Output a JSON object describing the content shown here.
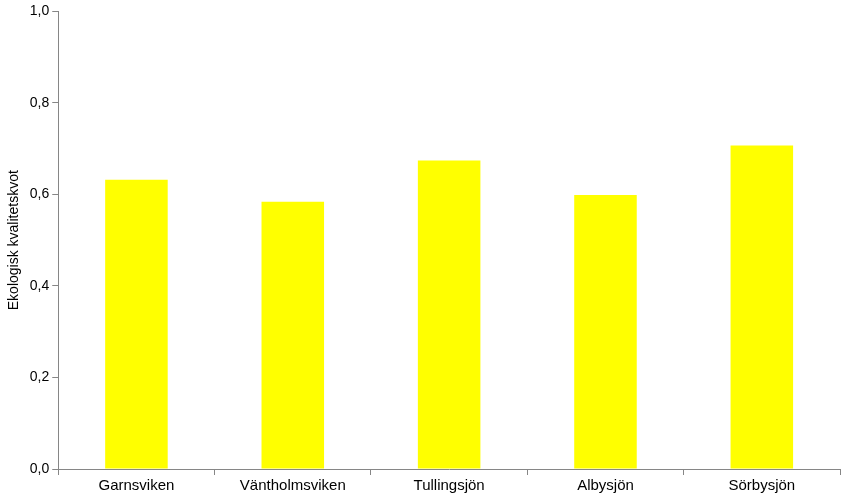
{
  "chart_data": {
    "type": "bar",
    "y_label": "Ekologisk kvalitetskvot",
    "categories": [
      "Garnsviken",
      "Väntholmsviken",
      "Tullingsjön",
      "Albysjön",
      "Sörbysjön"
    ],
    "values": [
      0.632,
      0.584,
      0.674,
      0.599,
      0.707
    ],
    "color": "#ffff00",
    "ylim": [
      0,
      1
    ],
    "yticks": [
      {
        "value": 0,
        "label": "0,0"
      },
      {
        "value": 0.2,
        "label": "0,2"
      },
      {
        "value": 0.4,
        "label": "0,4"
      },
      {
        "value": 0.6,
        "label": "0,6"
      },
      {
        "value": 0.8,
        "label": "0,8"
      },
      {
        "value": 1,
        "label": "1,0"
      }
    ],
    "grid": false
  }
}
